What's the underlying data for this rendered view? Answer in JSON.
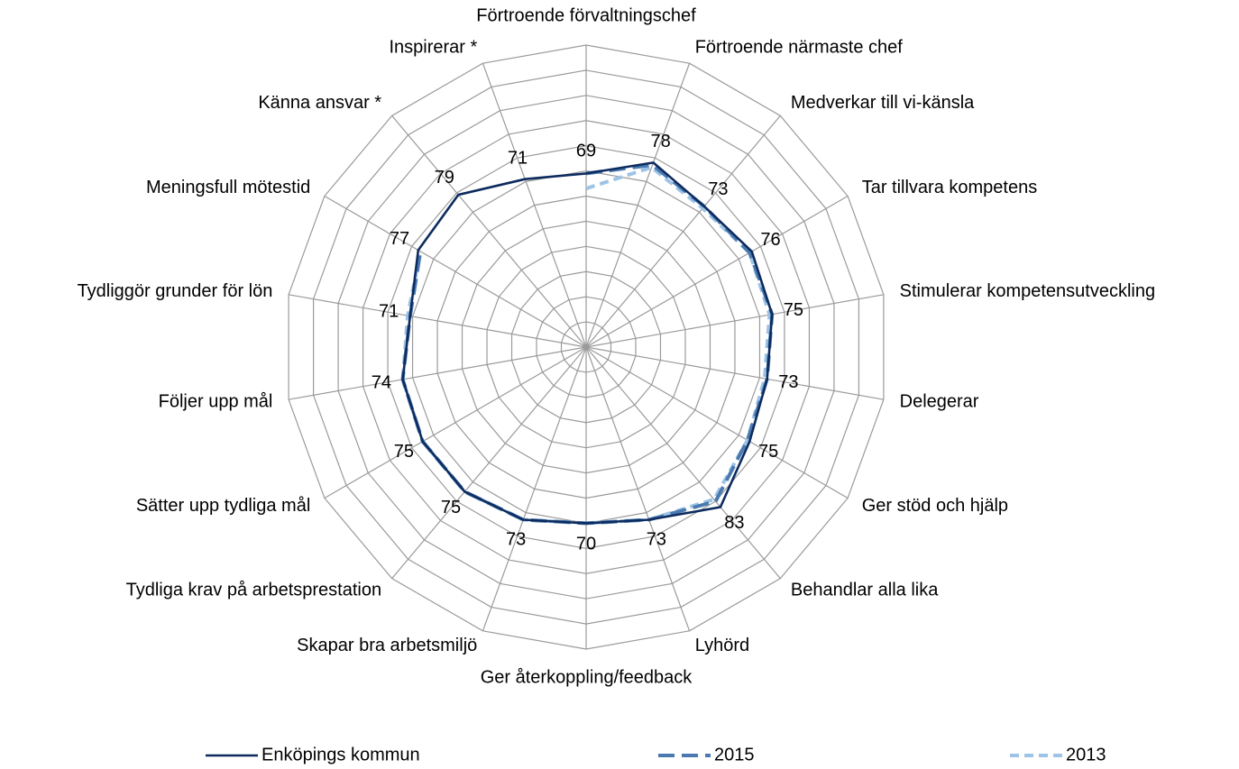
{
  "chart_data": {
    "type": "radar",
    "categories": [
      "Förtroende förvaltningschef",
      "Förtroende närmaste chef",
      "Medverkar till vi-känsla",
      "Tar tillvara kompetens",
      "Stimulerar kompetensutveckling",
      "Delegerar",
      "Ger stöd och hjälp",
      "Behandlar alla lika",
      "Lyhörd",
      "Ger återkoppling/feedback",
      "Skapar bra arbetsmiljö",
      "Tydliga krav på arbetsprestation",
      "Sätter upp tydliga mål",
      "Följer upp mål",
      "Tydliggör grunder för lön",
      "Meningsfull mötestid",
      "Känna ansvar *",
      "Inspirerar *"
    ],
    "series": [
      {
        "name": "Enköpings kommun",
        "color": "#0d2b5e",
        "dash": "solid",
        "data_labels": true,
        "values": [
          69,
          78,
          73,
          76,
          75,
          73,
          75,
          83,
          73,
          70,
          73,
          75,
          75,
          74,
          71,
          77,
          79,
          71
        ]
      },
      {
        "name": "2015",
        "color": "#4a7ab0",
        "dash": "long",
        "values": [
          69,
          77,
          73,
          75,
          75,
          73,
          74,
          80,
          73,
          70,
          73,
          75,
          75,
          74,
          71,
          76,
          null,
          null
        ]
      },
      {
        "name": "2013",
        "color": "#9dc3e6",
        "dash": "short",
        "values": [
          63,
          76,
          72,
          75,
          74,
          72,
          74,
          79,
          73,
          70,
          73,
          75,
          75,
          74,
          72,
          76,
          null,
          null
        ]
      }
    ],
    "rlim": [
      0,
      120
    ],
    "rticks": [
      10,
      20,
      30,
      40,
      50,
      60,
      70,
      80,
      90,
      100,
      110,
      120
    ],
    "legend": "bottom"
  }
}
